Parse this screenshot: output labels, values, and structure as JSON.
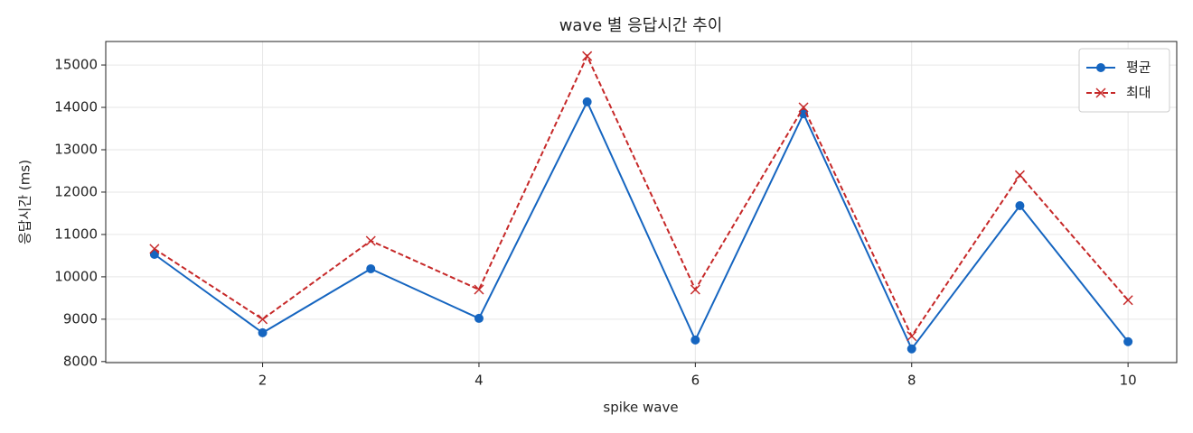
{
  "chart_data": {
    "type": "line",
    "title": "wave 별 응답시간 추이",
    "xlabel": "spike wave",
    "ylabel": "응답시간 (ms)",
    "x": [
      1,
      2,
      3,
      4,
      5,
      6,
      7,
      8,
      9,
      10
    ],
    "series": [
      {
        "name": "평균",
        "color": "#1565c0",
        "marker": "o",
        "linestyle": "solid",
        "values": [
          10530,
          8680,
          10190,
          9020,
          14130,
          8510,
          13850,
          8300,
          11680,
          8470
        ]
      },
      {
        "name": "최대",
        "color": "#c62828",
        "marker": "x",
        "linestyle": "dashed",
        "values": [
          10660,
          9000,
          10850,
          9700,
          15210,
          9700,
          14000,
          8600,
          12400,
          9450
        ]
      }
    ],
    "xlim": [
      0.55,
      10.45
    ],
    "xticks": [
      2,
      4,
      6,
      8,
      10
    ],
    "ylim": [
      7975,
      15555
    ],
    "yticks": [
      8000,
      9000,
      10000,
      11000,
      12000,
      13000,
      14000,
      15000
    ],
    "grid": true,
    "legend": "upper right"
  }
}
